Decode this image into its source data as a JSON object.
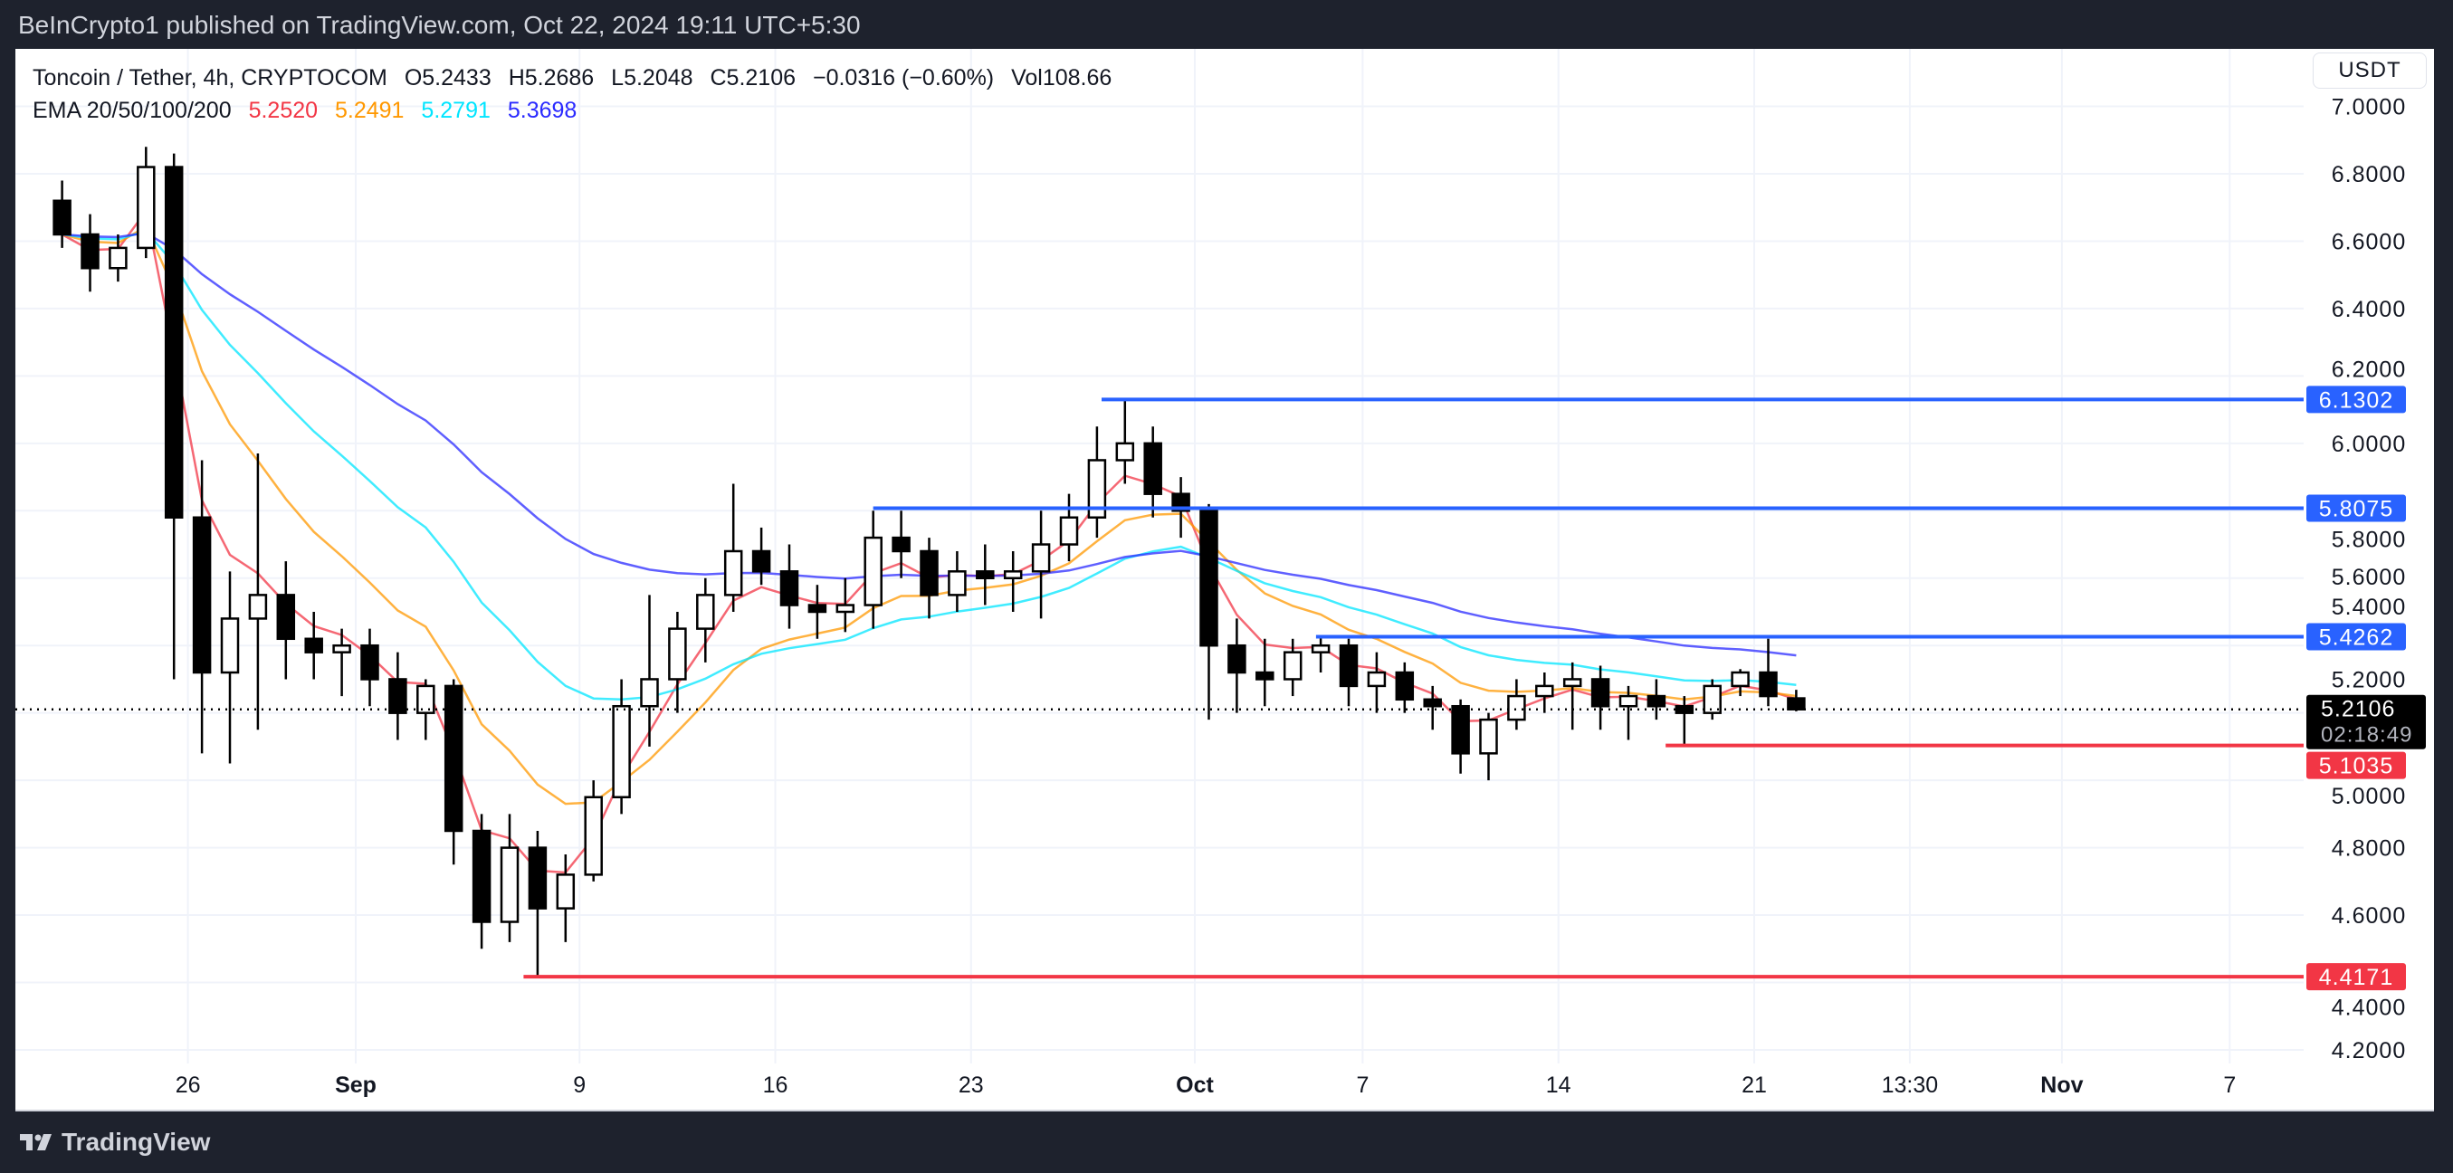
{
  "published": "BeInCrypto1 published on TradingView.com, Oct 22, 2024 19:11 UTC+5:30",
  "legend": {
    "symbol": "Toncoin / Tether, 4h, CRYPTOCOM",
    "open": "O5.2433",
    "high": "H5.2686",
    "low": "L5.2048",
    "close": "C5.2106",
    "change": "−0.0316 (−0.60%)",
    "volume": "Vol108.66",
    "ema_label": "EMA 20/50/100/200",
    "ema_values": [
      "5.2520",
      "5.2491",
      "5.2791",
      "5.3698"
    ]
  },
  "currency_button": "USDT",
  "branding": "TradingView",
  "chart_data": {
    "type": "candlestick",
    "title": "Toncoin / Tether, 4h, CRYPTOCOM",
    "ylim": [
      4.2,
      7.0
    ],
    "grid": true,
    "y_ticks": [
      "4.2000",
      "4.4000",
      "4.6000",
      "4.8000",
      "5.0000",
      "5.2000",
      "5.4000",
      "5.6000",
      "5.8000",
      "6.0000",
      "6.2000",
      "6.4000",
      "6.6000",
      "6.8000",
      "7.0000"
    ],
    "x_ticks": [
      {
        "label": "26",
        "date": "2024-08-26"
      },
      {
        "label": "Sep",
        "date": "2024-09-01"
      },
      {
        "label": "9",
        "date": "2024-09-09"
      },
      {
        "label": "16",
        "date": "2024-09-16"
      },
      {
        "label": "23",
        "date": "2024-09-23"
      },
      {
        "label": "Oct",
        "date": "2024-10-01"
      },
      {
        "label": "7",
        "date": "2024-10-07"
      },
      {
        "label": "14",
        "date": "2024-10-14"
      },
      {
        "label": "21",
        "date": "2024-10-21"
      },
      {
        "label": "13:30",
        "date": "2024-10-26T13:30"
      },
      {
        "label": "Nov",
        "date": "2024-11-01"
      },
      {
        "label": "7",
        "date": "2024-11-07"
      }
    ],
    "candles_ohlc": [
      [
        "2024-08-21",
        6.72,
        6.78,
        6.58,
        6.62
      ],
      [
        "2024-08-22",
        6.62,
        6.68,
        6.45,
        6.52
      ],
      [
        "2024-08-23",
        6.52,
        6.62,
        6.48,
        6.58
      ],
      [
        "2024-08-24",
        6.58,
        6.88,
        6.55,
        6.82
      ],
      [
        "2024-08-25",
        6.82,
        6.86,
        5.3,
        5.78
      ],
      [
        "2024-08-26",
        5.78,
        5.95,
        5.08,
        5.32
      ],
      [
        "2024-08-27",
        5.32,
        5.62,
        5.05,
        5.48
      ],
      [
        "2024-08-28",
        5.48,
        5.97,
        5.15,
        5.55
      ],
      [
        "2024-08-29",
        5.55,
        5.65,
        5.3,
        5.42
      ],
      [
        "2024-08-30",
        5.42,
        5.5,
        5.3,
        5.38
      ],
      [
        "2024-08-31",
        5.38,
        5.45,
        5.25,
        5.4
      ],
      [
        "2024-09-01",
        5.4,
        5.45,
        5.22,
        5.3
      ],
      [
        "2024-09-02",
        5.3,
        5.38,
        5.12,
        5.2
      ],
      [
        "2024-09-03",
        5.2,
        5.3,
        5.12,
        5.28
      ],
      [
        "2024-09-04",
        5.28,
        5.3,
        4.75,
        4.85
      ],
      [
        "2024-09-05",
        4.85,
        4.9,
        4.5,
        4.58
      ],
      [
        "2024-09-06",
        4.58,
        4.9,
        4.52,
        4.8
      ],
      [
        "2024-09-07",
        4.8,
        4.85,
        4.42,
        4.62
      ],
      [
        "2024-09-08",
        4.62,
        4.78,
        4.52,
        4.72
      ],
      [
        "2024-09-09",
        4.72,
        5.0,
        4.7,
        4.95
      ],
      [
        "2024-09-10",
        4.95,
        5.3,
        4.9,
        5.22
      ],
      [
        "2024-09-11",
        5.22,
        5.55,
        5.1,
        5.3
      ],
      [
        "2024-09-12",
        5.3,
        5.5,
        5.2,
        5.45
      ],
      [
        "2024-09-13",
        5.45,
        5.6,
        5.35,
        5.55
      ],
      [
        "2024-09-14",
        5.55,
        5.88,
        5.5,
        5.68
      ],
      [
        "2024-09-15",
        5.68,
        5.75,
        5.58,
        5.62
      ],
      [
        "2024-09-16",
        5.62,
        5.7,
        5.45,
        5.52
      ],
      [
        "2024-09-17",
        5.52,
        5.58,
        5.42,
        5.5
      ],
      [
        "2024-09-18",
        5.5,
        5.6,
        5.44,
        5.52
      ],
      [
        "2024-09-19",
        5.52,
        5.8,
        5.45,
        5.72
      ],
      [
        "2024-09-20",
        5.72,
        5.8,
        5.6,
        5.68
      ],
      [
        "2024-09-21",
        5.68,
        5.72,
        5.48,
        5.55
      ],
      [
        "2024-09-22",
        5.55,
        5.68,
        5.5,
        5.62
      ],
      [
        "2024-09-23",
        5.62,
        5.7,
        5.52,
        5.6
      ],
      [
        "2024-09-24",
        5.6,
        5.68,
        5.5,
        5.62
      ],
      [
        "2024-09-25",
        5.62,
        5.8,
        5.48,
        5.7
      ],
      [
        "2024-09-26",
        5.7,
        5.85,
        5.65,
        5.78
      ],
      [
        "2024-09-27",
        5.78,
        6.05,
        5.72,
        5.95
      ],
      [
        "2024-09-28",
        5.95,
        6.13,
        5.88,
        6.0
      ],
      [
        "2024-09-29",
        6.0,
        6.05,
        5.78,
        5.85
      ],
      [
        "2024-09-30",
        5.85,
        5.9,
        5.72,
        5.8
      ],
      [
        "2024-10-01",
        5.8,
        5.82,
        5.18,
        5.4
      ],
      [
        "2024-10-02",
        5.4,
        5.48,
        5.2,
        5.32
      ],
      [
        "2024-10-03",
        5.32,
        5.42,
        5.22,
        5.3
      ],
      [
        "2024-10-04",
        5.3,
        5.42,
        5.25,
        5.38
      ],
      [
        "2024-10-05",
        5.38,
        5.43,
        5.32,
        5.4
      ],
      [
        "2024-10-06",
        5.4,
        5.42,
        5.22,
        5.28
      ],
      [
        "2024-10-07",
        5.28,
        5.38,
        5.2,
        5.32
      ],
      [
        "2024-10-08",
        5.32,
        5.35,
        5.2,
        5.24
      ],
      [
        "2024-10-09",
        5.24,
        5.28,
        5.15,
        5.22
      ],
      [
        "2024-10-10",
        5.22,
        5.24,
        5.02,
        5.08
      ],
      [
        "2024-10-11",
        5.08,
        5.2,
        5.0,
        5.18
      ],
      [
        "2024-10-12",
        5.18,
        5.3,
        5.15,
        5.25
      ],
      [
        "2024-10-13",
        5.25,
        5.32,
        5.2,
        5.28
      ],
      [
        "2024-10-14",
        5.28,
        5.35,
        5.15,
        5.3
      ],
      [
        "2024-10-15",
        5.3,
        5.34,
        5.15,
        5.22
      ],
      [
        "2024-10-16",
        5.22,
        5.28,
        5.12,
        5.25
      ],
      [
        "2024-10-17",
        5.25,
        5.3,
        5.18,
        5.22
      ],
      [
        "2024-10-18",
        5.22,
        5.25,
        5.1,
        5.2
      ],
      [
        "2024-10-19",
        5.2,
        5.3,
        5.18,
        5.28
      ],
      [
        "2024-10-20",
        5.28,
        5.33,
        5.25,
        5.32
      ],
      [
        "2024-10-21",
        5.32,
        5.42,
        5.22,
        5.25
      ],
      [
        "2024-10-22",
        5.2433,
        5.2686,
        5.2048,
        5.2106
      ]
    ],
    "ema_periods": [
      20,
      50,
      100,
      200
    ],
    "ema_colors": [
      "#f23645",
      "#ff9800",
      "#00e5ff",
      "#2a2aff"
    ],
    "levels": [
      {
        "price": 6.1302,
        "label": "6.1302",
        "start": "2024-09-27T16:00",
        "color": "#2962ff"
      },
      {
        "price": 5.8075,
        "label": "5.8075",
        "start": "2024-09-19T12:00",
        "color": "#2962ff"
      },
      {
        "price": 5.4262,
        "label": "5.4262",
        "start": "2024-10-05T08:00",
        "color": "#2962ff"
      },
      {
        "price": 5.1035,
        "label": "5.1035",
        "start": "2024-10-17T20:00",
        "color": "#f23645"
      },
      {
        "price": 4.4171,
        "label": "4.4171",
        "start": "2024-09-07T00:00",
        "color": "#f23645"
      }
    ],
    "last_price": {
      "price": 5.2106,
      "label": "5.2106",
      "countdown": "02:18:49"
    }
  }
}
